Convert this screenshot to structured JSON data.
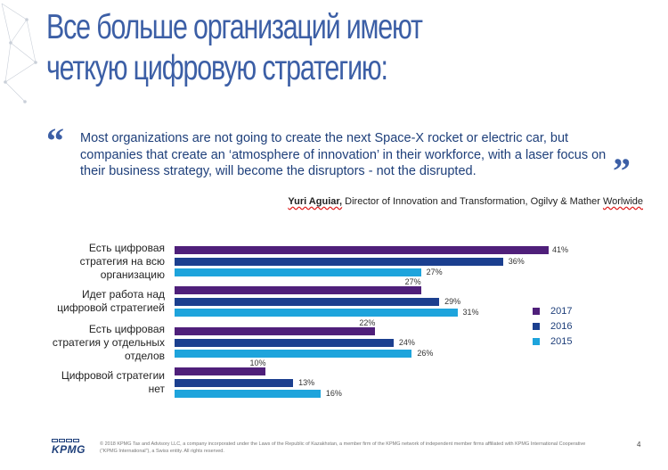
{
  "title": {
    "line1": "Все больше организаций имеют",
    "line2": "четкую цифровую стратегию:"
  },
  "quote": {
    "open_mark": "“",
    "close_mark": "”",
    "text": "Most organizations are not going to create the next Space-X rocket or electric car, but companies that create an ‘atmosphere of innovation’ in their workforce, with a laser focus on their business strategy, will become the disruptors - not the disrupted.",
    "author_name": "Yuri Aguiar,",
    "author_role_pre": " Director of Innovation and Transformation, Ogilvy & Mather ",
    "author_role_last": "Worlwide"
  },
  "chart_data": {
    "type": "bar",
    "orientation": "horizontal",
    "categories": [
      "Есть цифровая стратегия на всю организацию",
      "Идет работа над цифровой стратегией",
      "Есть цифровая стратегия у отдельных отделов",
      "Цифровой стратегии нет"
    ],
    "category_lines": [
      [
        "Есть цифровая",
        "стратегия на всю",
        "организацию"
      ],
      [
        "Идет работа над",
        "цифровой стратегией"
      ],
      [
        "Есть цифровая",
        "стратегия у отдельных",
        "отделов"
      ],
      [
        "Цифровой стратегии",
        "нет"
      ]
    ],
    "series": [
      {
        "name": "2017",
        "color": "#4f1f7a",
        "values": [
          41,
          27,
          22,
          10
        ]
      },
      {
        "name": "2016",
        "color": "#1b3f8f",
        "values": [
          36,
          29,
          24,
          13
        ]
      },
      {
        "name": "2015",
        "color": "#1ea4dc",
        "values": [
          27,
          31,
          26,
          16
        ]
      }
    ],
    "value_suffix": "%",
    "xlim": [
      0,
      41
    ],
    "legend_position": "right",
    "grid": false
  },
  "footer": {
    "logo": "KPMG",
    "text": "© 2018 KPMG Tax and Advisory LLC, a company incorporated under the Laws of the Republic of Kazakhstan, a member firm of the KPMG network of independent member firms affiliated with KPMG International Cooperative (“KPMG International”), a Swiss entity. All rights reserved.",
    "page": "4"
  }
}
